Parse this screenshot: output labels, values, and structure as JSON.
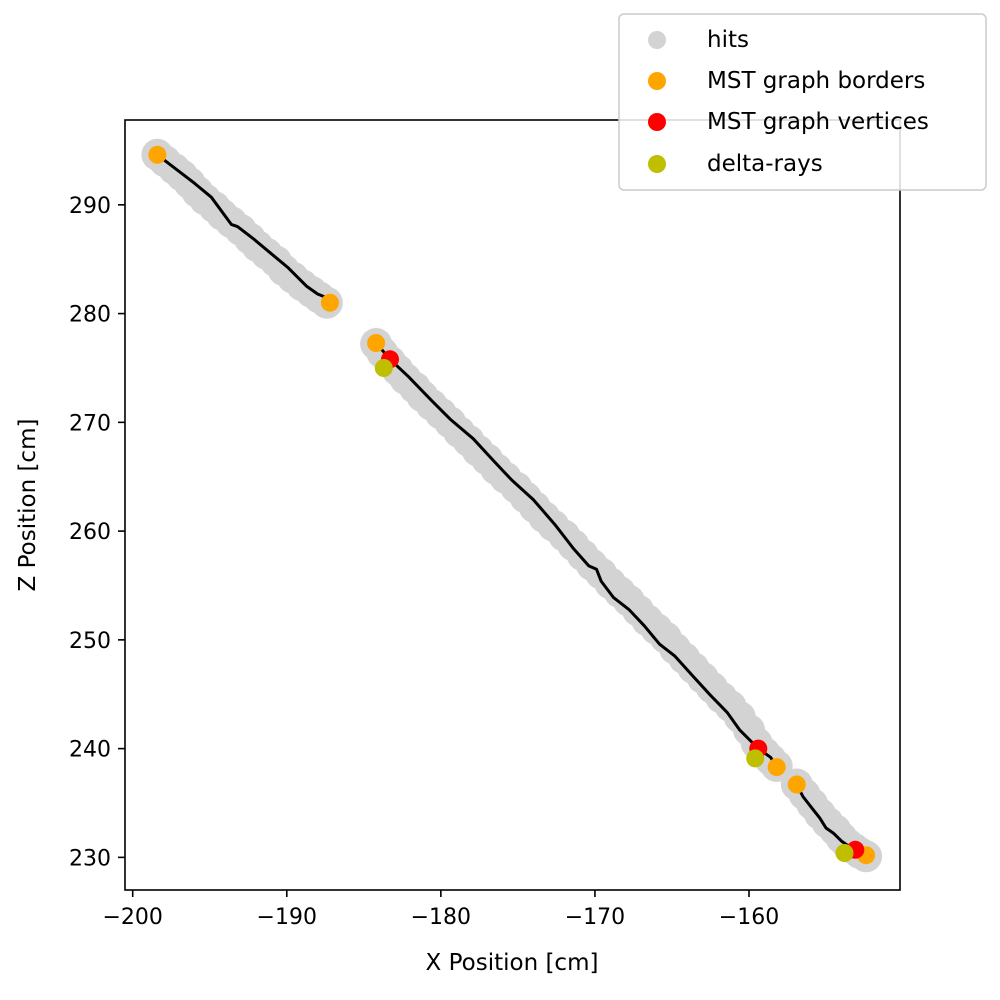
{
  "chart_data": {
    "type": "scatter",
    "title": "",
    "xlabel": "X Position [cm]",
    "ylabel": "Z Position [cm]",
    "xlim": [
      -200.5,
      -150.2
    ],
    "ylim": [
      227.0,
      297.8
    ],
    "xticks": [
      -200,
      -190,
      -180,
      -170,
      -160
    ],
    "yticks": [
      230,
      240,
      250,
      260,
      270,
      280,
      290
    ],
    "xtick_labels": [
      "−200",
      "−190",
      "−180",
      "−170",
      "−160"
    ],
    "ytick_labels": [
      "230",
      "240",
      "250",
      "260",
      "270",
      "280",
      "290"
    ],
    "grid": false,
    "legend_position": "top-right",
    "series": [
      {
        "name": "hits",
        "kind": "scatter",
        "color": "#d3d3d3",
        "x": [
          -198.4,
          -197.9,
          -197.3,
          -196.8,
          -196.3,
          -195.8,
          -195.3,
          -194.7,
          -194.2,
          -193.6,
          -193.0,
          -192.4,
          -191.9,
          -191.3,
          -190.7,
          -190.2,
          -189.6,
          -189.0,
          -188.4,
          -187.9,
          -187.4,
          -184.2,
          -183.8,
          -183.3,
          -182.8,
          -182.3,
          -181.7,
          -181.2,
          -180.6,
          -180.0,
          -179.4,
          -178.8,
          -178.2,
          -177.6,
          -177.0,
          -176.4,
          -175.8,
          -175.1,
          -174.5,
          -173.9,
          -173.3,
          -172.7,
          -172.0,
          -171.4,
          -170.8,
          -170.2,
          -169.6,
          -169.0,
          -168.4,
          -167.8,
          -167.2,
          -166.6,
          -166.0,
          -165.4,
          -164.8,
          -164.2,
          -163.6,
          -163.0,
          -162.4,
          -161.8,
          -161.2,
          -160.6,
          -160.0,
          -159.5,
          -159.0,
          -158.6,
          -158.2,
          -156.9,
          -156.4,
          -155.9,
          -155.4,
          -154.9,
          -154.4,
          -154.0,
          -153.6,
          -153.2,
          -152.8,
          -152.4
        ],
        "y": [
          294.6,
          294.0,
          293.3,
          292.7,
          292.0,
          291.2,
          290.5,
          289.8,
          289.1,
          288.4,
          287.7,
          286.9,
          286.2,
          285.5,
          284.8,
          284.0,
          283.3,
          282.6,
          282.0,
          281.5,
          281.0,
          277.2,
          276.4,
          275.6,
          274.8,
          274.0,
          273.2,
          272.4,
          271.6,
          270.8,
          270.0,
          269.1,
          268.3,
          267.4,
          266.6,
          265.7,
          264.9,
          264.0,
          263.1,
          262.2,
          261.3,
          260.5,
          259.6,
          258.7,
          257.8,
          256.9,
          256.1,
          255.2,
          254.4,
          253.6,
          252.7,
          251.8,
          251.0,
          250.2,
          249.2,
          248.3,
          247.4,
          246.5,
          245.6,
          244.7,
          243.9,
          242.9,
          241.7,
          240.5,
          239.6,
          239.0,
          238.4,
          236.7,
          235.8,
          234.9,
          234.0,
          233.2,
          232.5,
          231.8,
          231.2,
          230.8,
          230.4,
          230.1
        ],
        "size": 16
      },
      {
        "name": "MST graph borders",
        "kind": "scatter",
        "color": "#ffa500",
        "x": [
          -198.4,
          -187.2,
          -184.2,
          -158.2,
          -156.9,
          -152.4
        ],
        "y": [
          294.6,
          281.0,
          277.3,
          238.3,
          236.7,
          230.2
        ],
        "size": 9
      },
      {
        "name": "MST graph vertices",
        "kind": "scatter",
        "color": "#ff0000",
        "x": [
          -183.3,
          -159.4,
          -153.1
        ],
        "y": [
          275.8,
          240.0,
          230.7
        ],
        "size": 9
      },
      {
        "name": "delta-rays",
        "kind": "scatter",
        "color": "#bfbf00",
        "x": [
          -183.7,
          -159.6,
          -153.8
        ],
        "y": [
          275.0,
          239.1,
          230.4
        ],
        "size": 9
      }
    ],
    "lines": [
      {
        "name": "",
        "color": "#000000",
        "x": [
          -198.4,
          -197.2,
          -196.0,
          -194.9,
          -193.6,
          -193.2,
          -192.1,
          -191.0,
          -189.9,
          -188.7,
          -188.0,
          -187.3,
          -187.2
        ],
        "y": [
          294.6,
          293.3,
          292.0,
          290.7,
          288.2,
          288.0,
          286.8,
          285.5,
          284.2,
          282.5,
          281.8,
          281.4,
          281.0
        ]
      },
      {
        "name": "",
        "color": "#000000",
        "x": [
          -184.2,
          -183.3,
          -182.1,
          -180.6,
          -179.4,
          -177.9,
          -176.6,
          -175.4,
          -174.0,
          -172.6,
          -171.4,
          -170.4,
          -169.9,
          -169.6,
          -168.8,
          -167.8,
          -166.8,
          -165.8,
          -164.8,
          -163.6,
          -162.5,
          -161.4,
          -160.6,
          -159.4,
          -158.6,
          -158.2
        ],
        "y": [
          277.3,
          275.8,
          274.2,
          272.0,
          270.3,
          268.5,
          266.5,
          264.7,
          262.9,
          260.6,
          258.4,
          256.8,
          256.5,
          255.4,
          253.9,
          252.8,
          251.3,
          249.6,
          248.5,
          246.6,
          244.9,
          243.3,
          241.7,
          240.0,
          239.2,
          238.3
        ]
      },
      {
        "name": "",
        "color": "#000000",
        "x": [
          -159.4,
          -159.7
        ],
        "y": [
          240.0,
          239.2
        ]
      },
      {
        "name": "",
        "color": "#000000",
        "x": [
          -183.3,
          -183.7
        ],
        "y": [
          275.8,
          275.0
        ]
      },
      {
        "name": "",
        "color": "#000000",
        "x": [
          -156.9,
          -156.5,
          -155.9,
          -155.4,
          -155.0,
          -154.5,
          -154.0,
          -153.5,
          -153.1,
          -152.4
        ],
        "y": [
          236.7,
          235.6,
          234.5,
          233.6,
          232.7,
          232.2,
          231.5,
          231.0,
          230.7,
          230.2
        ]
      },
      {
        "name": "",
        "color": "#000000",
        "x": [
          -153.1,
          -153.8
        ],
        "y": [
          230.7,
          230.3
        ]
      }
    ]
  }
}
